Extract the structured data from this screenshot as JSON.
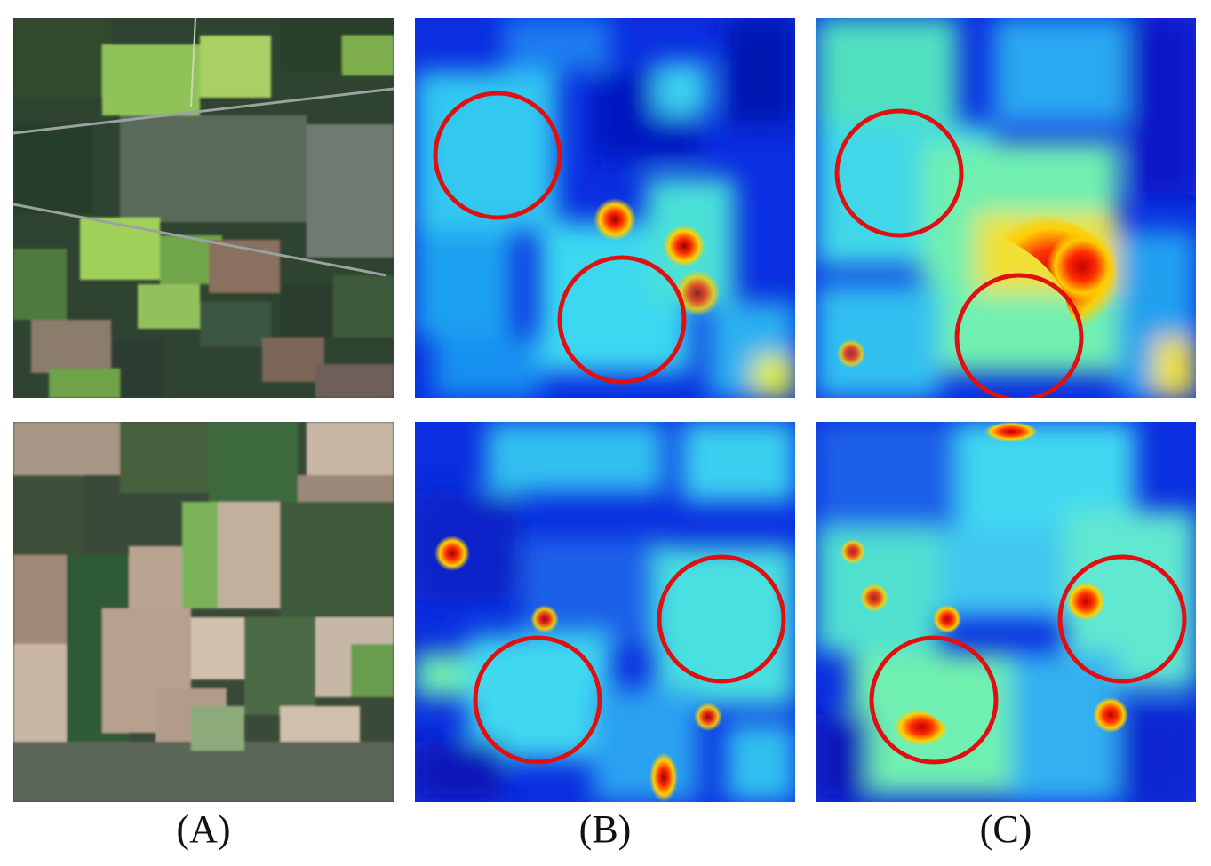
{
  "figure": {
    "column_labels": {
      "a": "(A)",
      "b": "(B)",
      "c": "(C)"
    },
    "colors": {
      "circle": "#e01010",
      "heat_low": "#0010c8",
      "heat_mid": "#20e0f0",
      "heat_high": "#ff2000",
      "heat_peak": "#a00000"
    },
    "rows": [
      {
        "satellite": "satellite-image-top",
        "heatmap_b": "heatmap-b-top",
        "heatmap_c": "heatmap-c-top"
      },
      {
        "satellite": "satellite-image-bottom",
        "heatmap_b": "heatmap-b-bottom",
        "heatmap_c": "heatmap-c-bottom"
      }
    ]
  }
}
